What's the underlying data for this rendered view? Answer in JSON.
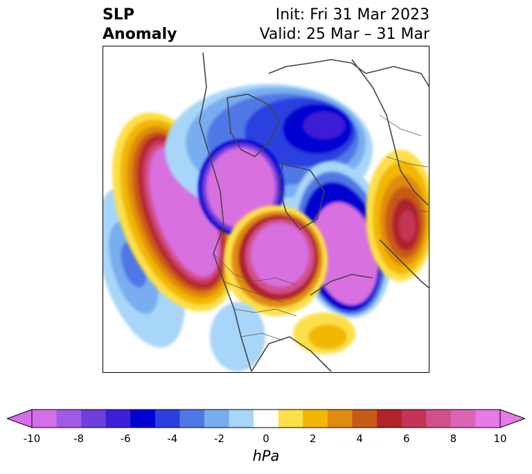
{
  "title": {
    "left_line1": "SLP",
    "left_line2": "Anomaly",
    "right_line1": "Init: Fri 31 Mar 2023",
    "right_line2": "Valid: 25 Mar – 31 Mar"
  },
  "colorbar": {
    "label": "hPa",
    "ticks": [
      "-10",
      "-8",
      "-6",
      "-4",
      "-2",
      "0",
      "2",
      "4",
      "6",
      "8",
      "10"
    ],
    "tick_values": [
      -10,
      -8,
      -6,
      -4,
      -2,
      0,
      2,
      4,
      6,
      8,
      10
    ],
    "min": -10,
    "max": 10,
    "levels": [
      -10,
      -9,
      -8,
      -7,
      -6,
      -5,
      -4,
      -3,
      -2,
      -1,
      1,
      2,
      3,
      4,
      5,
      6,
      7,
      8,
      9,
      10
    ],
    "colors": [
      "#d36fe8",
      "#a05be3",
      "#6e3fdc",
      "#3c1fd6",
      "#0000d0",
      "#2a3fe0",
      "#4f78e6",
      "#78aef0",
      "#a8d6f8",
      "#ffffff",
      "#fde04a",
      "#f2b700",
      "#e08c10",
      "#c85a18",
      "#b0242a",
      "#c43456",
      "#d2508a",
      "#dc64b4",
      "#e67ae6"
    ],
    "extend_under_color": "#d36fe8",
    "extend_over_color": "#e67ae6"
  },
  "map": {
    "projection": "north-polar-stereographic",
    "background": "#ffffff",
    "coastline_color": "#444444"
  }
}
